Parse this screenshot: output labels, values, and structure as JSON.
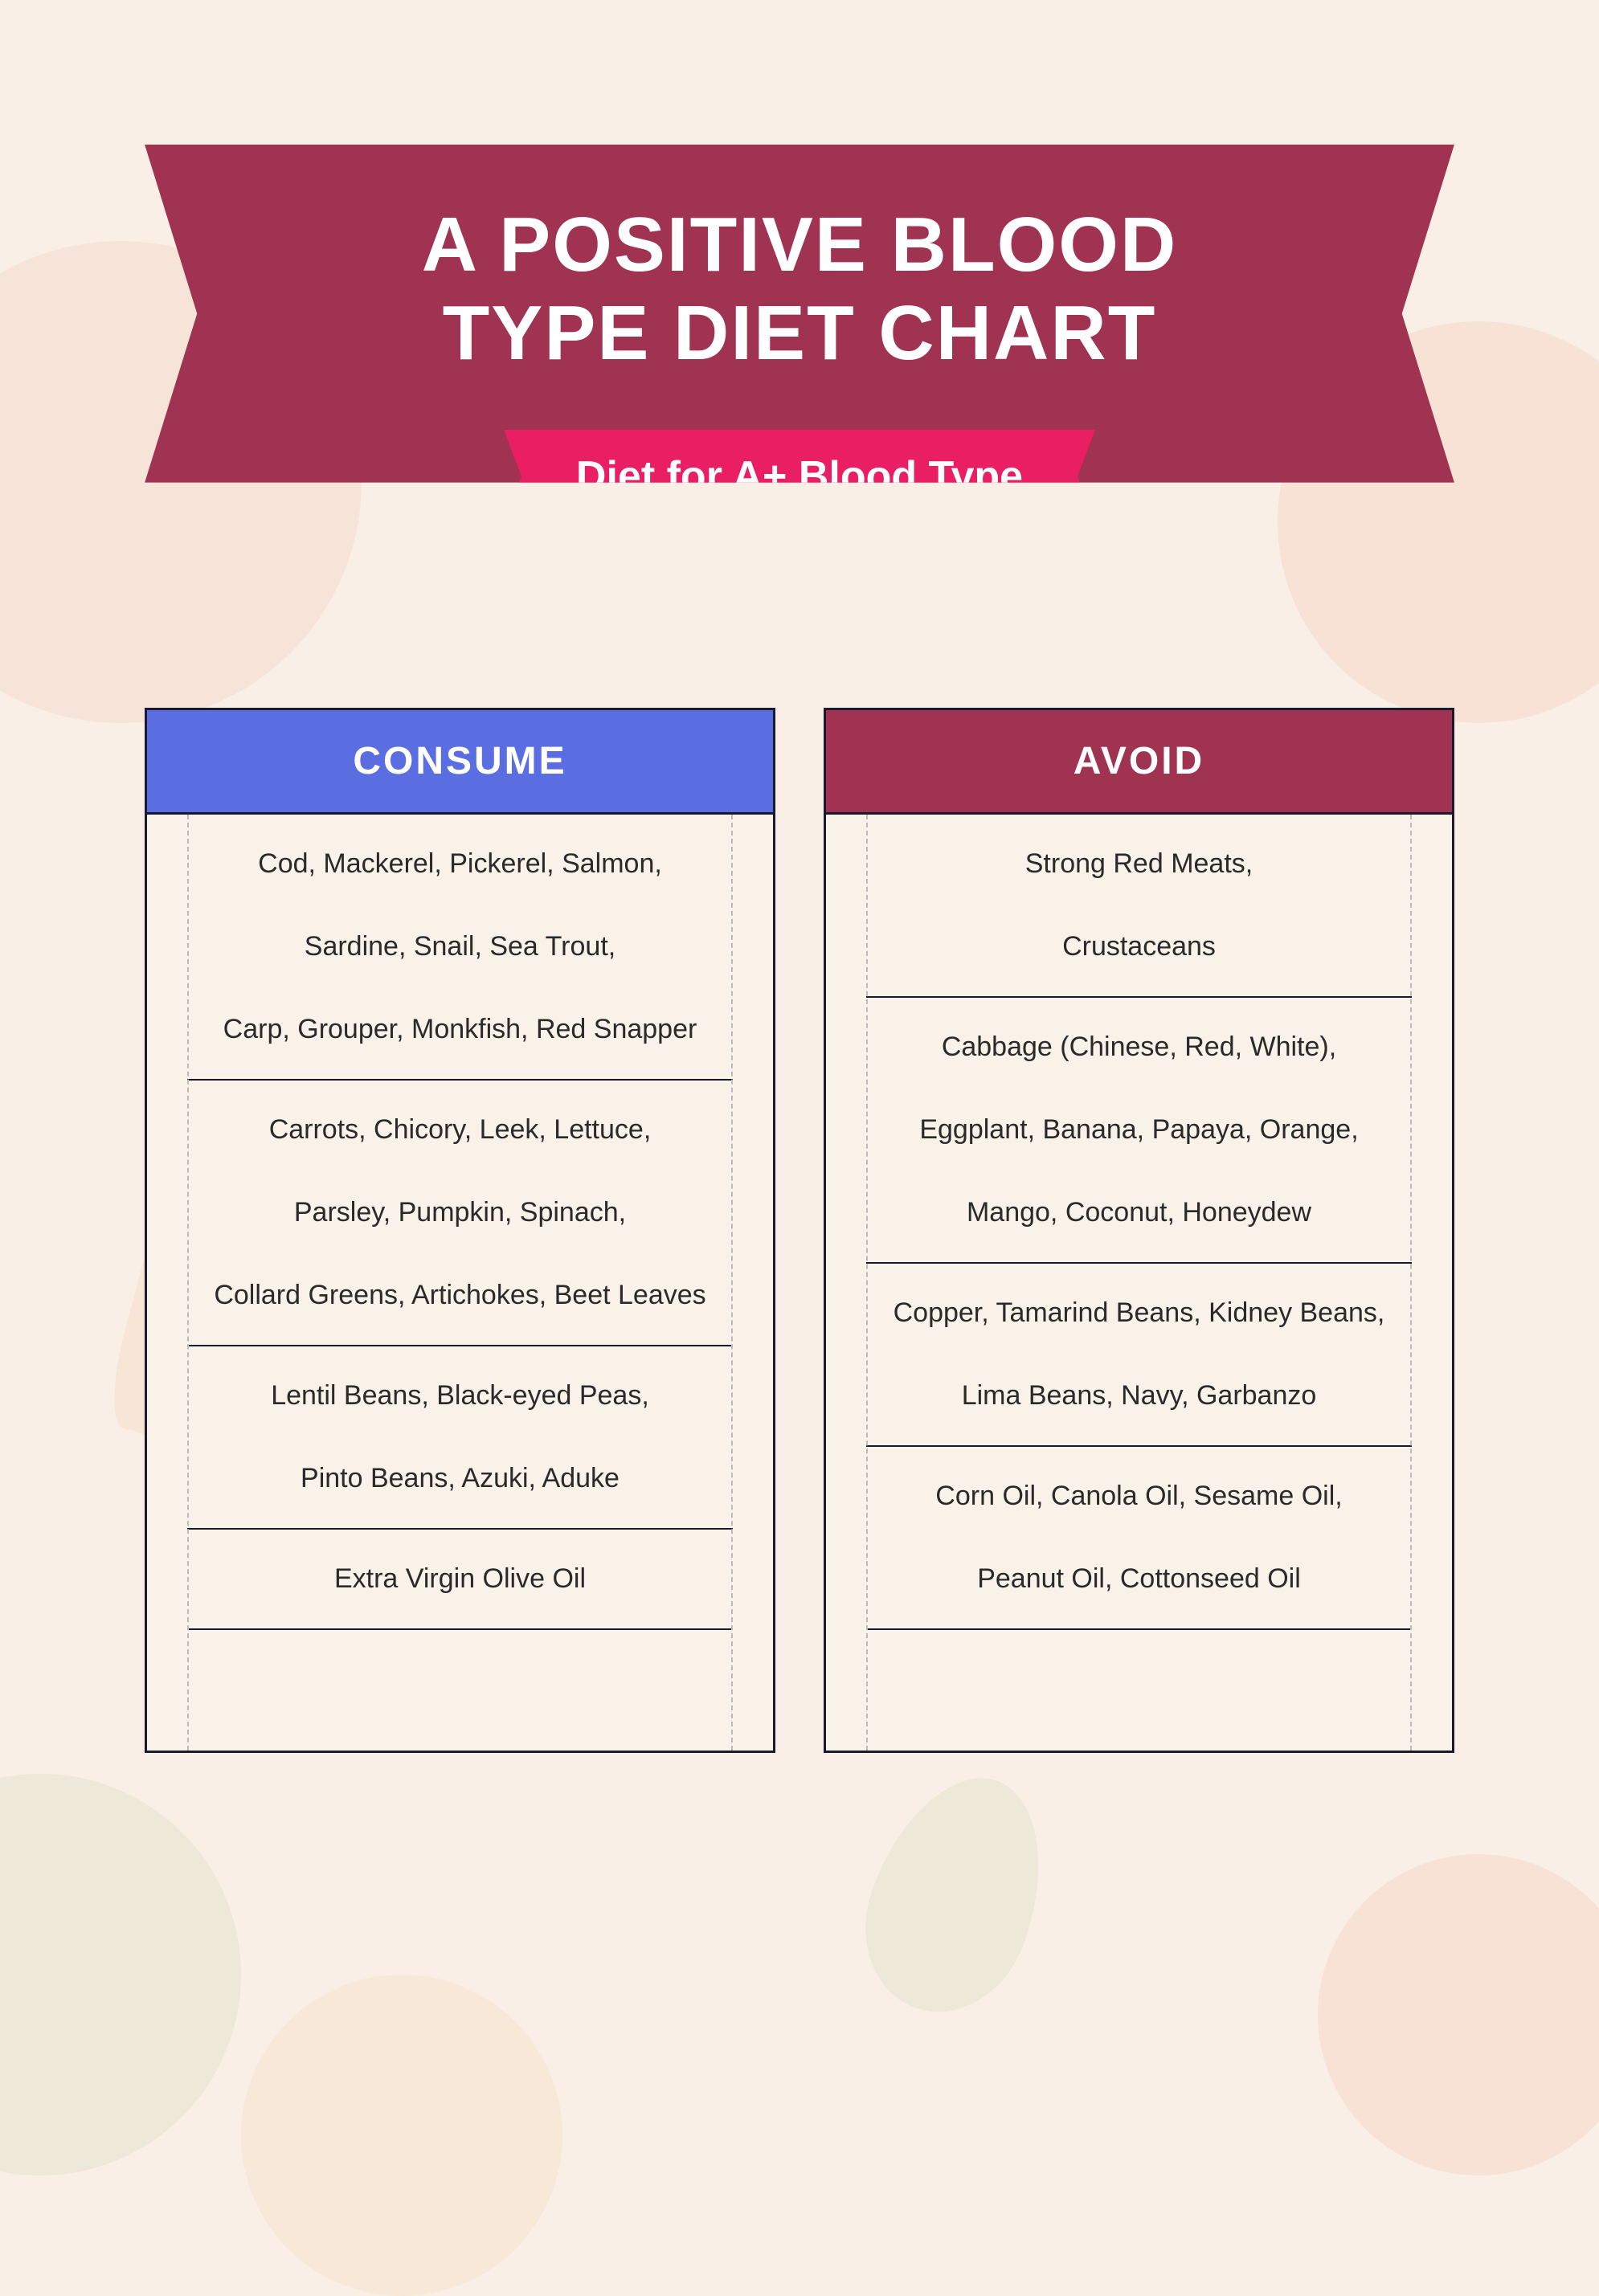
{
  "colors": {
    "page_bg": "#f9efe6",
    "title_banner_bg": "#a03352",
    "subtitle_ribbon_bg": "#e91e63",
    "consume_header_bg": "#5b6ee1",
    "avoid_header_bg": "#a03352",
    "table_border": "#1a1a2e",
    "table_bg": "#f9f2e8",
    "text_color": "#2a2a2a",
    "dashed_line": "#bbbbbb"
  },
  "typography": {
    "title_fontsize": 96,
    "title_weight": 800,
    "subtitle_fontsize": 52,
    "subtitle_weight": 700,
    "header_fontsize": 48,
    "header_weight": 700,
    "row_fontsize": 34
  },
  "header": {
    "title_line1": "A POSITIVE BLOOD",
    "title_line2": "TYPE DIET CHART",
    "subtitle": "Diet for A+ Blood Type"
  },
  "tables": {
    "consume": {
      "header": "CONSUME",
      "groups": [
        [
          "Cod, Mackerel, Pickerel, Salmon,",
          "Sardine, Snail, Sea Trout,",
          "Carp, Grouper, Monkfish, Red Snapper"
        ],
        [
          "Carrots, Chicory, Leek, Lettuce,",
          "Parsley, Pumpkin, Spinach,",
          "Collard Greens, Artichokes, Beet Leaves"
        ],
        [
          "Lentil Beans, Black-eyed Peas,",
          "Pinto Beans, Azuki, Aduke"
        ],
        [
          "Extra Virgin Olive Oil"
        ]
      ]
    },
    "avoid": {
      "header": "AVOID",
      "groups": [
        [
          "Strong Red Meats,",
          "Crustaceans"
        ],
        [
          "Cabbage (Chinese, Red, White),",
          "Eggplant, Banana, Papaya, Orange,",
          "Mango, Coconut, Honeydew"
        ],
        [
          "Copper, Tamarind Beans, Kidney Beans,",
          "Lima Beans, Navy, Garbanzo"
        ],
        [
          "Corn Oil, Canola Oil, Sesame Oil,",
          "Peanut Oil, Cottonseed Oil"
        ]
      ]
    }
  }
}
